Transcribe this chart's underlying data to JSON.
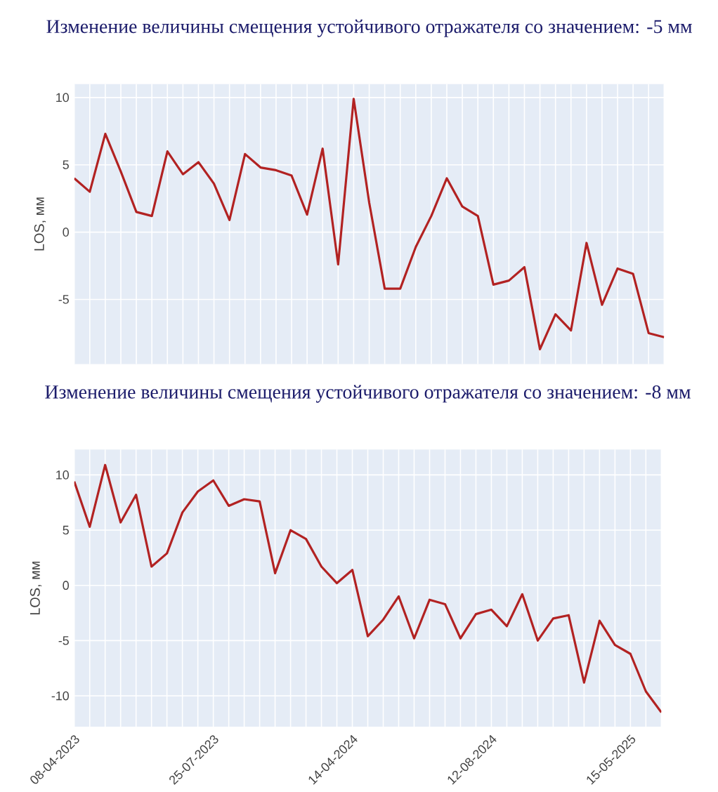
{
  "chart_data": [
    {
      "type": "line",
      "title": "Изменение величины смещения устойчивого отражателя со значением: -5 мм",
      "ylabel": "LOS, мм",
      "categories": [
        null,
        null,
        null,
        null,
        null,
        null,
        null,
        null,
        null,
        null,
        null,
        null,
        null,
        null,
        null,
        null,
        null,
        null,
        null,
        null,
        null,
        null,
        null,
        null,
        null,
        null,
        null,
        null,
        null,
        null,
        null,
        null,
        null,
        null,
        null,
        null,
        null,
        null,
        null
      ],
      "values": [
        4.0,
        3.0,
        7.3,
        4.5,
        1.5,
        1.2,
        6.0,
        4.3,
        5.2,
        3.6,
        0.9,
        5.8,
        4.8,
        4.6,
        4.2,
        1.3,
        6.2,
        -2.4,
        9.9,
        2.2,
        -4.2,
        -4.2,
        -1.1,
        1.2,
        4.0,
        1.9,
        1.2,
        -3.9,
        -3.6,
        -2.6,
        -8.7,
        -6.1,
        -7.3,
        -0.8,
        -5.4,
        -2.7,
        -3.1,
        -7.5,
        -7.8
      ],
      "color": "#b22222",
      "ylim": [
        -9.8,
        11
      ],
      "yticks": [
        -5,
        0,
        5,
        10
      ],
      "grid": true,
      "tick_labels": "y"
    },
    {
      "type": "line",
      "title": "Изменение величины смещения устойчивого отражателя со значением: -8 мм",
      "ylabel": "LOS, мм",
      "categories": [
        "08-04-2023",
        null,
        null,
        null,
        null,
        null,
        null,
        null,
        null,
        "25-07-2023",
        null,
        null,
        null,
        null,
        null,
        null,
        null,
        null,
        "14-04-2024",
        null,
        null,
        null,
        null,
        null,
        null,
        null,
        null,
        "12-08-2024",
        null,
        null,
        null,
        null,
        null,
        null,
        null,
        null,
        "15-05-2025",
        null,
        null
      ],
      "values": [
        9.4,
        5.3,
        10.9,
        5.7,
        8.2,
        1.7,
        2.9,
        6.6,
        8.5,
        9.5,
        7.2,
        7.8,
        7.6,
        1.1,
        5.0,
        4.2,
        1.7,
        0.2,
        1.4,
        -4.6,
        -3.1,
        -1.0,
        -4.8,
        -1.3,
        -1.7,
        -4.8,
        -2.6,
        -2.2,
        -3.7,
        -0.8,
        -5.0,
        -3.0,
        -2.7,
        -8.8,
        -3.2,
        -5.4,
        -6.2,
        -9.6,
        -11.5
      ],
      "color": "#b22222",
      "ylim": [
        -12.8,
        12.3
      ],
      "yticks": [
        -10,
        -5,
        0,
        5,
        10
      ],
      "grid": true
    }
  ]
}
